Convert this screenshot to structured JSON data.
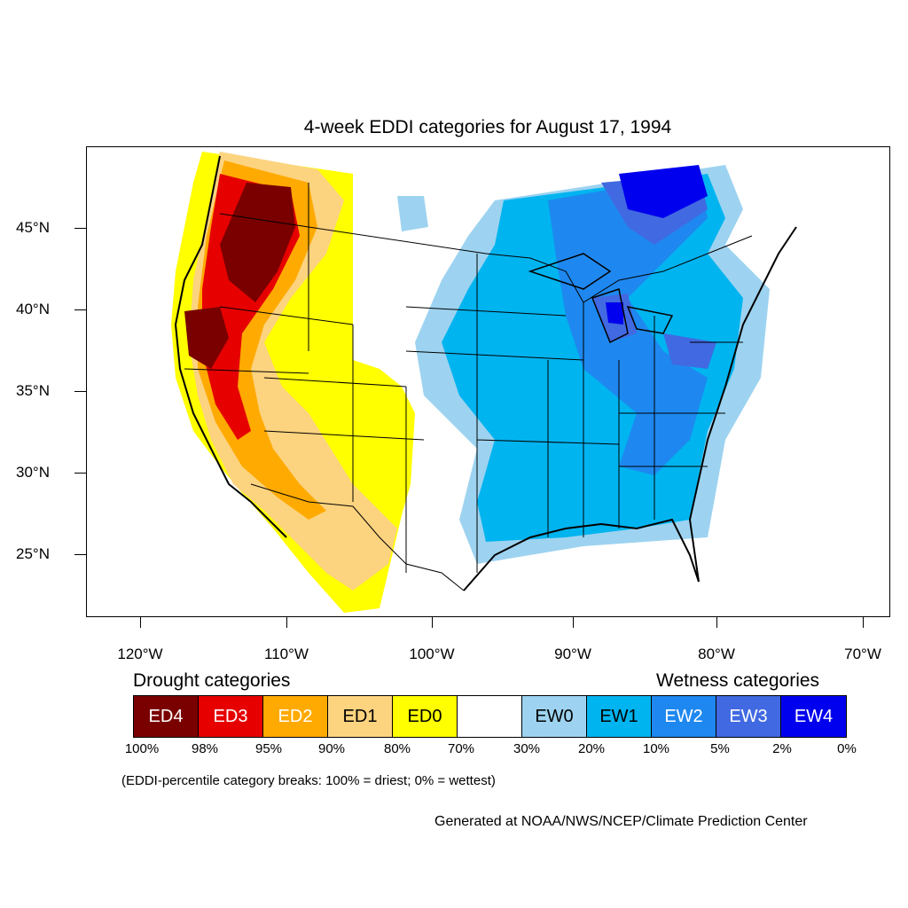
{
  "title": "4-week EDDI categories for August 17, 1994",
  "lat_labels": [
    "45°N",
    "40°N",
    "35°N",
    "30°N",
    "25°N"
  ],
  "lon_labels": [
    "120°W",
    "110°W",
    "100°W",
    "90°W",
    "80°W",
    "70°W"
  ],
  "drought_heading": "Drought categories",
  "wetness_heading": "Wetness categories",
  "categories": [
    {
      "label": "ED4",
      "color": "#7a0000",
      "text_color": "#ffffff"
    },
    {
      "label": "ED3",
      "color": "#e60000",
      "text_color": "#ffffff"
    },
    {
      "label": "ED2",
      "color": "#ffaa00",
      "text_color": "#ffffff"
    },
    {
      "label": "ED1",
      "color": "#fcd37f",
      "text_color": "#000000"
    },
    {
      "label": "ED0",
      "color": "#ffff00",
      "text_color": "#000000"
    },
    {
      "label": "",
      "color": "#ffffff",
      "text_color": "#000000"
    },
    {
      "label": "EW0",
      "color": "#9dd3f0",
      "text_color": "#000000"
    },
    {
      "label": "EW1",
      "color": "#00b4f0",
      "text_color": "#000000"
    },
    {
      "label": "EW2",
      "color": "#1e88f0",
      "text_color": "#ffffff"
    },
    {
      "label": "EW3",
      "color": "#4169e1",
      "text_color": "#ffffff"
    },
    {
      "label": "EW4",
      "color": "#0000ee",
      "text_color": "#ffffff"
    }
  ],
  "breaks": [
    "100%",
    "98%",
    "95%",
    "90%",
    "80%",
    "70%",
    "30%",
    "20%",
    "10%",
    "5%",
    "2%",
    "0%"
  ],
  "note": "(EDDI-percentile category breaks: 100% = driest; 0% = wettest)",
  "credit": "Generated at NOAA/NWS/NCEP/Climate Prediction Center"
}
